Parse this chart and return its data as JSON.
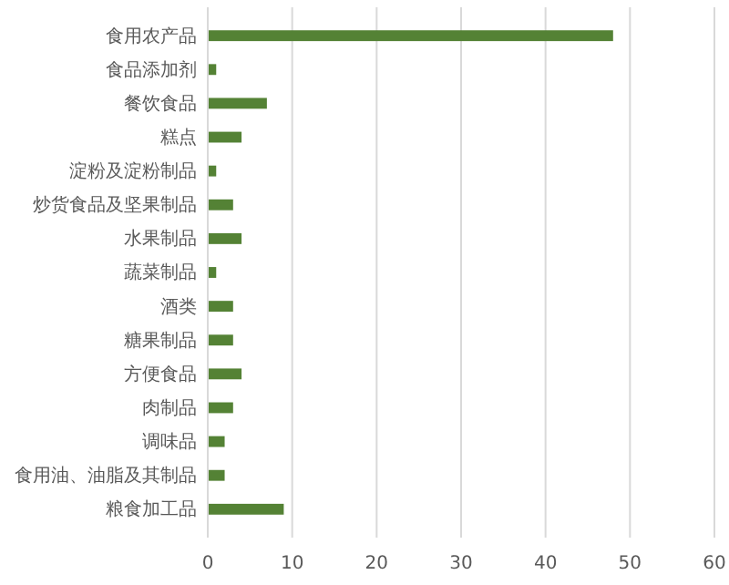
{
  "chart_data": {
    "type": "bar",
    "orientation": "horizontal",
    "categories": [
      "食用农产品",
      "食品添加剂",
      "餐饮食品",
      "糕点",
      "淀粉及淀粉制品",
      "炒货食品及坚果制品",
      "水果制品",
      "蔬菜制品",
      "酒类",
      "糖果制品",
      "方便食品",
      "肉制品",
      "调味品",
      "食用油、油脂及其制品",
      "粮食加工品"
    ],
    "values": [
      48,
      1,
      7,
      4,
      1,
      3,
      4,
      1,
      3,
      3,
      4,
      3,
      2,
      2,
      9
    ],
    "color": "#548235",
    "xlim": [
      0,
      60
    ],
    "xticks": [
      0,
      10,
      20,
      30,
      40,
      50,
      60
    ],
    "grid": "x"
  }
}
